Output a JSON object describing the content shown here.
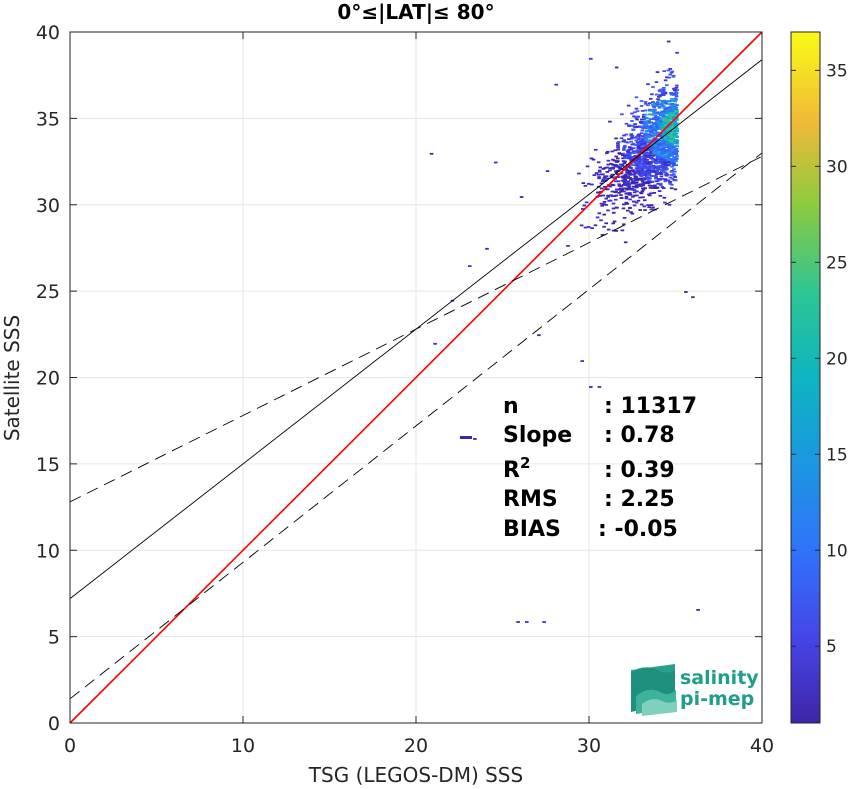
{
  "chart_data": {
    "type": "heatmap",
    "title": "0°≤|LAT|≤ 80°",
    "xlabel": "TSG (LEGOS-DM) SSS",
    "ylabel": "Satellite SSS",
    "xlim": [
      0,
      40
    ],
    "ylim": [
      0,
      40
    ],
    "xticks": [
      "0",
      "10",
      "20",
      "30",
      "40"
    ],
    "yticks": [
      "0",
      "5",
      "10",
      "15",
      "20",
      "25",
      "30",
      "35",
      "40"
    ],
    "grid": true,
    "colorbar": {
      "range": [
        1,
        37
      ],
      "ticks": [
        "5",
        "10",
        "15",
        "20",
        "25",
        "30",
        "35"
      ],
      "colormap": "parula"
    },
    "lines": [
      {
        "kind": "identity",
        "color": "#ff0000",
        "intercept": 0,
        "slope": 1
      },
      {
        "kind": "regression",
        "color": "#000000",
        "intercept": 7.2,
        "slope": 0.78
      },
      {
        "kind": "upper-bound",
        "color": "#000000",
        "dashed": true,
        "intercept": 12.8,
        "slope": 0.5
      },
      {
        "kind": "lower-bound",
        "color": "#000000",
        "dashed": true,
        "intercept": 1.4,
        "slope": 0.79
      }
    ],
    "stats": [
      {
        "label": "n",
        "value": ": 11317"
      },
      {
        "label": "Slope",
        "value": ": 0.78"
      },
      {
        "label": "R",
        "sup": "2",
        "value": ": 0.39"
      },
      {
        "label": "RMS",
        "value": ": 2.25"
      },
      {
        "label": "BIAS",
        "value": ": -0.05"
      }
    ]
  },
  "logo": {
    "line1": "salinity",
    "line2": "pi-mep"
  }
}
